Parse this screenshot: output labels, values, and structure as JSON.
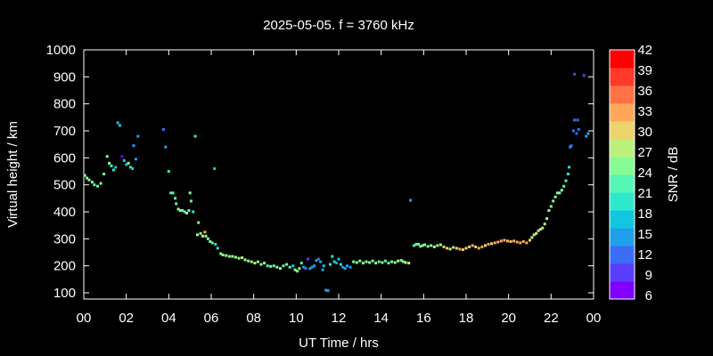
{
  "chart_data": {
    "type": "scatter",
    "title": "2025-05-05. f = 3760 kHz",
    "xlabel": "UT Time / hrs",
    "ylabel": "Virtual height / km",
    "xlim": [
      0,
      24
    ],
    "ylim": [
      80,
      1000
    ],
    "x_ticks": [
      "00",
      "02",
      "04",
      "06",
      "08",
      "10",
      "12",
      "14",
      "16",
      "18",
      "20",
      "22",
      "00"
    ],
    "x_tick_values": [
      0,
      2,
      4,
      6,
      8,
      10,
      12,
      14,
      16,
      18,
      20,
      22,
      24
    ],
    "y_ticks": [
      100,
      200,
      300,
      400,
      500,
      600,
      700,
      800,
      900,
      1000
    ],
    "grid": false,
    "colorbar": {
      "label": "SNR / dB",
      "range": [
        6,
        42
      ],
      "ticks": [
        6,
        9,
        12,
        15,
        18,
        21,
        24,
        27,
        30,
        33,
        36,
        39,
        42
      ],
      "colors": [
        "#8000ff",
        "#5a3dfb",
        "#3a6cf4",
        "#1fa0ea",
        "#13c6e0",
        "#2ee8cc",
        "#54f7b4",
        "#87fc94",
        "#bbf17b",
        "#ecd36b",
        "#ffa65a",
        "#ff7246",
        "#ff3a2a",
        "#ff0000"
      ]
    },
    "series": [
      {
        "points": [
          [
            0.05,
            535,
            24
          ],
          [
            0.15,
            525,
            24
          ],
          [
            0.25,
            518,
            24
          ],
          [
            0.4,
            510,
            24
          ],
          [
            0.5,
            500,
            22
          ],
          [
            0.65,
            495,
            22
          ],
          [
            0.8,
            505,
            24
          ],
          [
            0.95,
            540,
            24
          ],
          [
            1.1,
            605,
            26
          ],
          [
            1.2,
            580,
            24
          ],
          [
            1.3,
            570,
            22
          ],
          [
            1.4,
            555,
            20
          ],
          [
            1.5,
            565,
            18
          ],
          [
            1.6,
            730,
            18
          ],
          [
            1.7,
            720,
            18
          ],
          [
            1.8,
            605,
            8
          ],
          [
            1.9,
            590,
            18
          ],
          [
            2.0,
            575,
            18
          ],
          [
            2.1,
            580,
            24
          ],
          [
            2.2,
            565,
            20
          ],
          [
            2.3,
            560,
            18
          ],
          [
            2.35,
            645,
            16
          ],
          [
            2.45,
            595,
            15
          ],
          [
            2.55,
            680,
            14
          ],
          [
            3.75,
            705,
            12
          ],
          [
            3.85,
            640,
            14
          ],
          [
            4.0,
            550,
            20
          ],
          [
            4.1,
            470,
            22
          ],
          [
            4.2,
            470,
            22
          ],
          [
            4.3,
            450,
            22
          ],
          [
            4.35,
            430,
            22
          ],
          [
            4.45,
            410,
            24
          ],
          [
            4.55,
            405,
            24
          ],
          [
            4.65,
            405,
            22
          ],
          [
            4.75,
            400,
            22
          ],
          [
            4.85,
            395,
            24
          ],
          [
            4.95,
            405,
            22
          ],
          [
            5.0,
            470,
            24
          ],
          [
            5.05,
            440,
            22
          ],
          [
            5.15,
            400,
            20
          ],
          [
            5.25,
            680,
            20
          ],
          [
            5.4,
            360,
            24
          ],
          [
            5.5,
            320,
            26
          ],
          [
            5.35,
            315,
            26
          ],
          [
            5.6,
            310,
            30
          ],
          [
            5.7,
            325,
            32
          ],
          [
            5.75,
            310,
            26
          ],
          [
            5.85,
            300,
            24
          ],
          [
            5.95,
            290,
            24
          ],
          [
            6.05,
            285,
            22
          ],
          [
            6.15,
            560,
            18
          ],
          [
            6.2,
            280,
            20
          ],
          [
            6.3,
            265,
            20
          ],
          [
            6.45,
            245,
            26
          ],
          [
            6.55,
            240,
            28
          ],
          [
            6.7,
            238,
            24
          ],
          [
            6.85,
            235,
            26
          ],
          [
            7.0,
            235,
            28
          ],
          [
            7.15,
            232,
            26
          ],
          [
            7.3,
            228,
            24
          ],
          [
            7.45,
            230,
            28
          ],
          [
            7.6,
            222,
            26
          ],
          [
            7.75,
            218,
            24
          ],
          [
            7.9,
            215,
            24
          ],
          [
            8.05,
            210,
            28
          ],
          [
            8.2,
            215,
            26
          ],
          [
            8.35,
            205,
            24
          ],
          [
            8.5,
            210,
            24
          ],
          [
            8.65,
            200,
            22
          ],
          [
            8.8,
            198,
            24
          ],
          [
            8.95,
            200,
            22
          ],
          [
            9.1,
            195,
            24
          ],
          [
            9.25,
            190,
            24
          ],
          [
            9.4,
            200,
            22
          ],
          [
            9.55,
            205,
            24
          ],
          [
            9.7,
            195,
            22
          ],
          [
            9.85,
            200,
            18
          ],
          [
            9.95,
            185,
            24
          ],
          [
            10.05,
            180,
            24
          ],
          [
            10.15,
            190,
            26
          ],
          [
            10.25,
            210,
            22
          ],
          [
            10.35,
            195,
            16
          ],
          [
            10.45,
            190,
            12
          ],
          [
            10.55,
            225,
            10
          ],
          [
            10.65,
            190,
            14
          ],
          [
            10.75,
            195,
            14
          ],
          [
            10.85,
            200,
            16
          ],
          [
            10.95,
            220,
            14
          ],
          [
            11.05,
            225,
            12
          ],
          [
            11.15,
            215,
            14
          ],
          [
            11.25,
            185,
            16
          ],
          [
            11.3,
            200,
            18
          ],
          [
            11.4,
            110,
            14
          ],
          [
            11.5,
            108,
            14
          ],
          [
            11.6,
            205,
            20
          ],
          [
            11.7,
            235,
            20
          ],
          [
            11.8,
            215,
            20
          ],
          [
            11.9,
            210,
            16
          ],
          [
            12.0,
            225,
            18
          ],
          [
            12.1,
            205,
            20
          ],
          [
            12.2,
            195,
            14
          ],
          [
            12.3,
            190,
            16
          ],
          [
            12.4,
            200,
            14
          ],
          [
            12.55,
            195,
            16
          ],
          [
            12.7,
            215,
            24
          ],
          [
            12.85,
            212,
            24
          ],
          [
            13.0,
            218,
            24
          ],
          [
            13.15,
            210,
            26
          ],
          [
            13.3,
            215,
            24
          ],
          [
            13.45,
            212,
            26
          ],
          [
            13.6,
            218,
            24
          ],
          [
            13.75,
            210,
            24
          ],
          [
            13.9,
            215,
            22
          ],
          [
            14.05,
            212,
            24
          ],
          [
            14.2,
            218,
            22
          ],
          [
            14.35,
            210,
            24
          ],
          [
            14.5,
            215,
            26
          ],
          [
            14.65,
            212,
            24
          ],
          [
            14.8,
            218,
            28
          ],
          [
            14.95,
            220,
            26
          ],
          [
            15.05,
            215,
            26
          ],
          [
            15.15,
            212,
            28
          ],
          [
            15.3,
            210,
            28
          ],
          [
            15.38,
            443,
            16
          ],
          [
            15.55,
            275,
            22
          ],
          [
            15.65,
            280,
            22
          ],
          [
            15.75,
            280,
            24
          ],
          [
            15.85,
            272,
            26
          ],
          [
            15.95,
            275,
            26
          ],
          [
            16.05,
            278,
            24
          ],
          [
            16.2,
            272,
            26
          ],
          [
            16.35,
            275,
            26
          ],
          [
            16.5,
            270,
            28
          ],
          [
            16.65,
            275,
            26
          ],
          [
            16.8,
            278,
            28
          ],
          [
            16.95,
            270,
            30
          ],
          [
            17.1,
            265,
            30
          ],
          [
            17.25,
            262,
            28
          ],
          [
            17.4,
            268,
            28
          ],
          [
            17.55,
            265,
            30
          ],
          [
            17.7,
            262,
            32
          ],
          [
            17.85,
            260,
            30
          ],
          [
            18.0,
            265,
            30
          ],
          [
            18.15,
            270,
            30
          ],
          [
            18.3,
            275,
            32
          ],
          [
            18.45,
            270,
            30
          ],
          [
            18.6,
            265,
            32
          ],
          [
            18.75,
            270,
            32
          ],
          [
            18.9,
            275,
            30
          ],
          [
            19.05,
            280,
            32
          ],
          [
            19.2,
            282,
            30
          ],
          [
            19.35,
            285,
            32
          ],
          [
            19.5,
            288,
            32
          ],
          [
            19.65,
            292,
            32
          ],
          [
            19.8,
            295,
            32
          ],
          [
            19.95,
            292,
            32
          ],
          [
            20.1,
            290,
            30
          ],
          [
            20.25,
            292,
            32
          ],
          [
            20.4,
            288,
            32
          ],
          [
            20.55,
            285,
            34
          ],
          [
            20.7,
            290,
            34
          ],
          [
            20.85,
            285,
            34
          ],
          [
            21.0,
            295,
            30
          ],
          [
            21.1,
            305,
            28
          ],
          [
            21.2,
            315,
            28
          ],
          [
            21.3,
            320,
            28
          ],
          [
            21.4,
            330,
            30
          ],
          [
            21.5,
            335,
            28
          ],
          [
            21.6,
            340,
            28
          ],
          [
            21.7,
            355,
            28
          ],
          [
            21.8,
            375,
            28
          ],
          [
            21.9,
            405,
            26
          ],
          [
            22.0,
            420,
            26
          ],
          [
            22.1,
            440,
            26
          ],
          [
            22.2,
            455,
            24
          ],
          [
            22.3,
            470,
            26
          ],
          [
            22.4,
            470,
            24
          ],
          [
            22.5,
            480,
            24
          ],
          [
            22.6,
            495,
            22
          ],
          [
            22.7,
            515,
            22
          ],
          [
            22.8,
            540,
            20
          ],
          [
            22.85,
            565,
            20
          ],
          [
            22.9,
            640,
            14
          ],
          [
            22.95,
            645,
            12
          ],
          [
            23.05,
            700,
            12
          ],
          [
            23.1,
            740,
            12
          ],
          [
            23.2,
            690,
            12
          ],
          [
            23.25,
            740,
            12
          ],
          [
            23.3,
            705,
            12
          ],
          [
            23.1,
            910,
            10
          ],
          [
            23.55,
            905,
            10
          ],
          [
            23.65,
            680,
            14
          ],
          [
            23.75,
            690,
            14
          ]
        ]
      }
    ]
  }
}
